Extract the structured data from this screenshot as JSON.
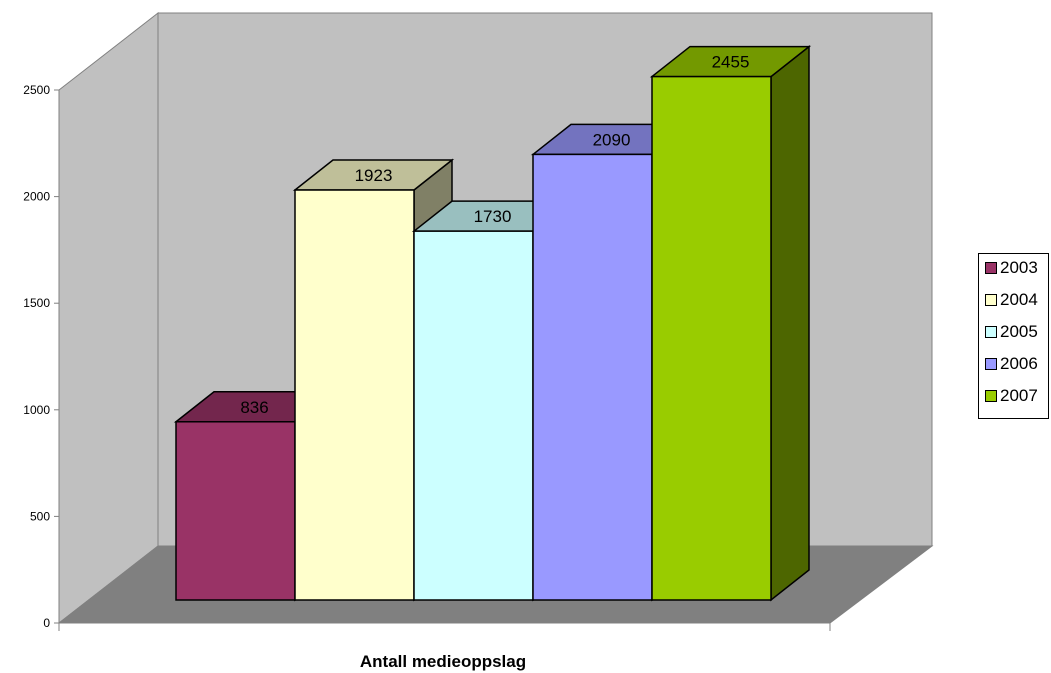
{
  "chart_data": {
    "type": "bar",
    "title": "",
    "xlabel": "Antall medieoppslag",
    "ylabel": "",
    "ylim": [
      0,
      2500
    ],
    "yticks": [
      0,
      500,
      1000,
      1500,
      2000,
      2500
    ],
    "grid": false,
    "legend_position": "right",
    "three_d": true,
    "series": [
      {
        "name": "2003",
        "value": 836,
        "color": "#993366"
      },
      {
        "name": "2004",
        "value": 1923,
        "color": "#FFFFCC"
      },
      {
        "name": "2005",
        "value": 1730,
        "color": "#CCFFFF"
      },
      {
        "name": "2006",
        "value": 2090,
        "color": "#9999FF"
      },
      {
        "name": "2007",
        "value": 2455,
        "color": "#99CC00"
      }
    ],
    "colors": {
      "back_wall": "#C0C0C0",
      "floor": "#808080",
      "axis": "#808080"
    }
  }
}
